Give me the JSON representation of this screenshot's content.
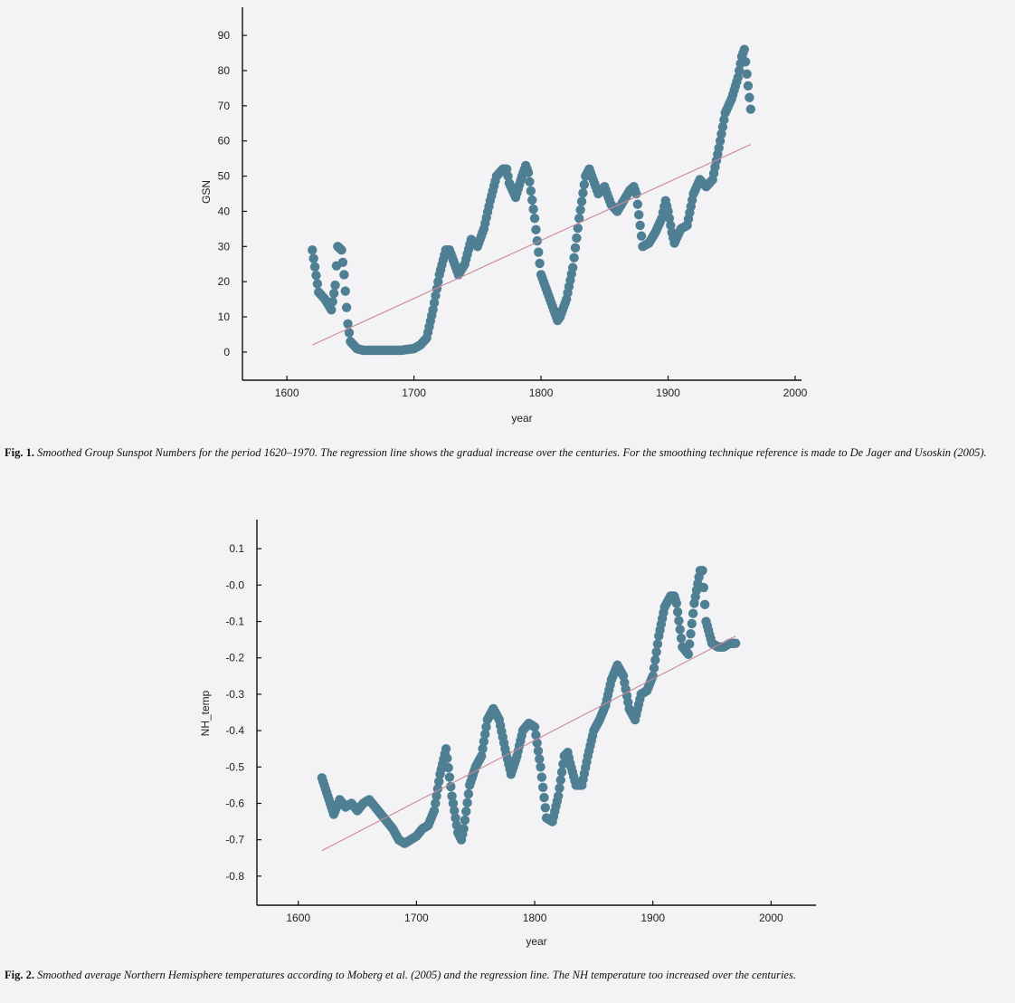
{
  "chart_data": [
    {
      "type": "scatter",
      "xlabel": "year",
      "ylabel": "GSN",
      "xlim": [
        1565,
        2005
      ],
      "ylim": [
        -8,
        98
      ],
      "xticks": [
        1600,
        1700,
        1800,
        1900,
        2000
      ],
      "yticks": [
        0,
        10,
        20,
        30,
        40,
        50,
        60,
        70,
        80,
        90
      ],
      "yticklabels": [
        "0",
        "10",
        "20",
        "30",
        "40",
        "50",
        "60",
        "70",
        "80",
        "90"
      ],
      "regression": {
        "x": [
          1620,
          1965
        ],
        "y": [
          2,
          59
        ]
      },
      "colors": {
        "points": "#4f7f93",
        "regression": "#c98a9a"
      },
      "series": [
        {
          "x": [
            1620,
            1625,
            1630,
            1635,
            1638,
            1640,
            1643,
            1645,
            1648,
            1650,
            1655,
            1660,
            1670,
            1680,
            1690,
            1700,
            1705,
            1710,
            1715,
            1720,
            1725,
            1728,
            1732,
            1735,
            1740,
            1745,
            1750,
            1755,
            1760,
            1765,
            1770,
            1773,
            1775,
            1780,
            1785,
            1788,
            1790,
            1795,
            1800,
            1805,
            1810,
            1813,
            1815,
            1820,
            1825,
            1830,
            1835,
            1838,
            1840,
            1845,
            1850,
            1855,
            1860,
            1865,
            1870,
            1873,
            1875,
            1880,
            1885,
            1890,
            1895,
            1898,
            1900,
            1903,
            1905,
            1910,
            1915,
            1920,
            1925,
            1930,
            1935,
            1940,
            1945,
            1950,
            1955,
            1958,
            1960,
            1962,
            1965
          ],
          "y": [
            29,
            17,
            15,
            12,
            19,
            30,
            29,
            22,
            8,
            3,
            1,
            0.5,
            0.5,
            0.5,
            0.5,
            1,
            2,
            4,
            12,
            22,
            29,
            29,
            25,
            22,
            25,
            32,
            30,
            35,
            43,
            50,
            52,
            52,
            48,
            44,
            50,
            53,
            51,
            38,
            22,
            17,
            12,
            9,
            10,
            15,
            24,
            38,
            50,
            52,
            50,
            45,
            47,
            42,
            40,
            43,
            46,
            47,
            45,
            30,
            31,
            34,
            38,
            43,
            40,
            34,
            31,
            35,
            36,
            45,
            49,
            47,
            49,
            58,
            68,
            72,
            78,
            84,
            86,
            79,
            69
          ]
        }
      ],
      "caption": {
        "label": "Fig. 1.",
        "text": "Smoothed Group Sunspot Numbers for the period 1620–1970. The regression line shows the gradual increase over the centuries. For the smoothing technique reference is made to De Jager and Usoskin (2005)."
      }
    },
    {
      "type": "scatter",
      "xlabel": "year",
      "ylabel": "NH_temp",
      "xlim": [
        1565,
        2038
      ],
      "ylim": [
        -0.88,
        0.18
      ],
      "xticks": [
        1600,
        1700,
        1800,
        1900,
        2000
      ],
      "yticks": [
        0.1,
        0.0,
        -0.1,
        -0.2,
        -0.3,
        -0.4,
        -0.5,
        -0.6,
        -0.7,
        -0.8
      ],
      "yticklabels": [
        "0.1",
        "-0.0",
        "-0.1",
        "-0.2",
        "-0.3",
        "-0.4",
        "-0.5",
        "-0.6",
        "-0.7",
        "-0.8"
      ],
      "regression": {
        "x": [
          1620,
          1970
        ],
        "y": [
          -0.73,
          -0.14
        ]
      },
      "colors": {
        "points": "#4f7f93",
        "regression": "#c98a9a"
      },
      "series": [
        {
          "x": [
            1620,
            1625,
            1630,
            1635,
            1640,
            1645,
            1650,
            1655,
            1660,
            1665,
            1670,
            1675,
            1680,
            1685,
            1690,
            1695,
            1700,
            1705,
            1710,
            1715,
            1720,
            1725,
            1730,
            1735,
            1738,
            1740,
            1745,
            1750,
            1755,
            1760,
            1765,
            1770,
            1775,
            1780,
            1785,
            1790,
            1795,
            1800,
            1805,
            1810,
            1815,
            1820,
            1825,
            1828,
            1830,
            1835,
            1840,
            1845,
            1850,
            1855,
            1860,
            1865,
            1870,
            1875,
            1880,
            1885,
            1890,
            1895,
            1900,
            1905,
            1910,
            1915,
            1918,
            1920,
            1925,
            1930,
            1935,
            1940,
            1942,
            1945,
            1950,
            1955,
            1960,
            1965,
            1970
          ],
          "y": [
            -0.53,
            -0.58,
            -0.63,
            -0.59,
            -0.61,
            -0.6,
            -0.62,
            -0.6,
            -0.59,
            -0.61,
            -0.63,
            -0.65,
            -0.67,
            -0.7,
            -0.71,
            -0.7,
            -0.69,
            -0.67,
            -0.66,
            -0.62,
            -0.52,
            -0.45,
            -0.58,
            -0.68,
            -0.7,
            -0.67,
            -0.55,
            -0.5,
            -0.47,
            -0.37,
            -0.34,
            -0.37,
            -0.45,
            -0.52,
            -0.47,
            -0.4,
            -0.38,
            -0.39,
            -0.5,
            -0.64,
            -0.65,
            -0.58,
            -0.47,
            -0.46,
            -0.49,
            -0.55,
            -0.55,
            -0.47,
            -0.4,
            -0.37,
            -0.33,
            -0.26,
            -0.22,
            -0.25,
            -0.34,
            -0.37,
            -0.3,
            -0.29,
            -0.25,
            -0.14,
            -0.06,
            -0.03,
            -0.03,
            -0.05,
            -0.17,
            -0.19,
            -0.05,
            0.04,
            0.04,
            -0.1,
            -0.16,
            -0.17,
            -0.17,
            -0.16,
            -0.16
          ]
        }
      ],
      "caption": {
        "label": "Fig. 2.",
        "text": "Smoothed average Northern Hemisphere temperatures according to Moberg et al. (2005) and the regression line. The NH temperature too increased over the centuries."
      }
    }
  ]
}
